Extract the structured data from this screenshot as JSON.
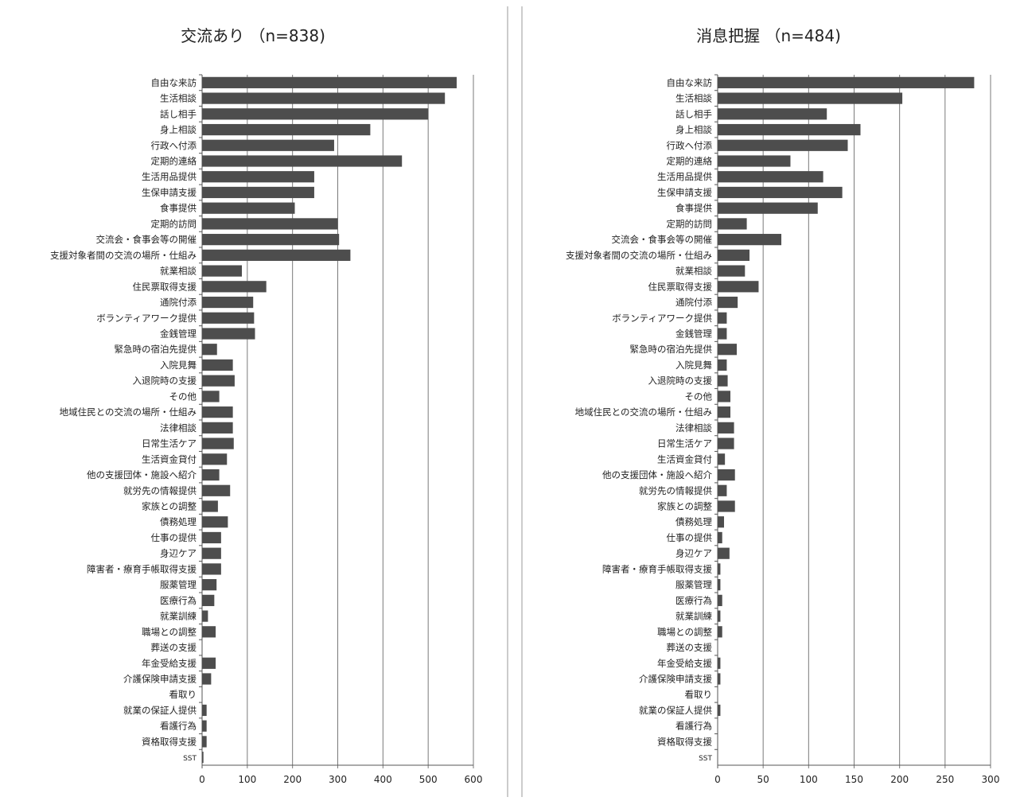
{
  "chart_data": [
    {
      "type": "bar",
      "orientation": "horizontal",
      "title": "交流あり （n=838)",
      "xlim": [
        0,
        600
      ],
      "xticks": [
        0,
        100,
        200,
        300,
        400,
        500,
        600
      ],
      "grid": true,
      "bar_color": "#4d4d4d",
      "categories": [
        "自由な来訪",
        "生活相談",
        "話し相手",
        "身上相談",
        "行政へ付添",
        "定期的連絡",
        "生活用品提供",
        "生保申請支援",
        "食事提供",
        "定期的訪問",
        "交流会・食事会等の開催",
        "支援対象者間の交流の場所・仕組み",
        "就業相談",
        "住民票取得支援",
        "通院付添",
        "ボランティアワーク提供",
        "金銭管理",
        "緊急時の宿泊先提供",
        "入院見舞",
        "入退院時の支援",
        "その他",
        "地域住民との交流の場所・仕組み",
        "法律相談",
        "日常生活ケア",
        "生活資金貸付",
        "他の支援団体・施設へ紹介",
        "就労先の情報提供",
        "家族との調整",
        "債務処理",
        "仕事の提供",
        "身辺ケア",
        "障害者・療育手帳取得支援",
        "服薬管理",
        "医療行為",
        "就業訓練",
        "職場との調整",
        "葬送の支援",
        "年金受給支援",
        "介護保険申請支援",
        "看取り",
        "就業の保証人提供",
        "看護行為",
        "資格取得支援",
        "SST"
      ],
      "values": [
        563,
        537,
        500,
        372,
        292,
        442,
        248,
        248,
        205,
        300,
        303,
        328,
        88,
        142,
        113,
        115,
        117,
        33,
        68,
        72,
        38,
        68,
        68,
        70,
        55,
        38,
        62,
        35,
        57,
        42,
        42,
        42,
        32,
        27,
        13,
        30,
        0,
        30,
        20,
        0,
        10,
        10,
        10,
        3
      ]
    },
    {
      "type": "bar",
      "orientation": "horizontal",
      "title": "消息把握 （n=484)",
      "xlim": [
        0,
        300
      ],
      "xticks": [
        0,
        50,
        100,
        150,
        200,
        250,
        300
      ],
      "grid": true,
      "bar_color": "#4d4d4d",
      "categories": [
        "自由な来訪",
        "生活相談",
        "話し相手",
        "身上相談",
        "行政へ付添",
        "定期的連絡",
        "生活用品提供",
        "生保申請支援",
        "食事提供",
        "定期的訪問",
        "交流会・食事会等の開催",
        "支援対象者間の交流の場所・仕組み",
        "就業相談",
        "住民票取得支援",
        "通院付添",
        "ボランティアワーク提供",
        "金銭管理",
        "緊急時の宿泊先提供",
        "入院見舞",
        "入退院時の支援",
        "その他",
        "地域住民との交流の場所・仕組み",
        "法律相談",
        "日常生活ケア",
        "生活資金貸付",
        "他の支援団体・施設へ紹介",
        "就労先の情報提供",
        "家族との調整",
        "債務処理",
        "仕事の提供",
        "身辺ケア",
        "障害者・療育手帳取得支援",
        "服薬管理",
        "医療行為",
        "就業訓練",
        "職場との調整",
        "葬送の支援",
        "年金受給支援",
        "介護保険申請支援",
        "看取り",
        "就業の保証人提供",
        "看護行為",
        "資格取得支援",
        "SST"
      ],
      "values": [
        282,
        203,
        120,
        157,
        143,
        80,
        116,
        137,
        110,
        32,
        70,
        35,
        30,
        45,
        22,
        10,
        10,
        21,
        10,
        11,
        14,
        14,
        18,
        18,
        8,
        19,
        10,
        19,
        7,
        5,
        13,
        3,
        3,
        5,
        3,
        5,
        0,
        3,
        3,
        0,
        3,
        0,
        0,
        0
      ]
    }
  ]
}
